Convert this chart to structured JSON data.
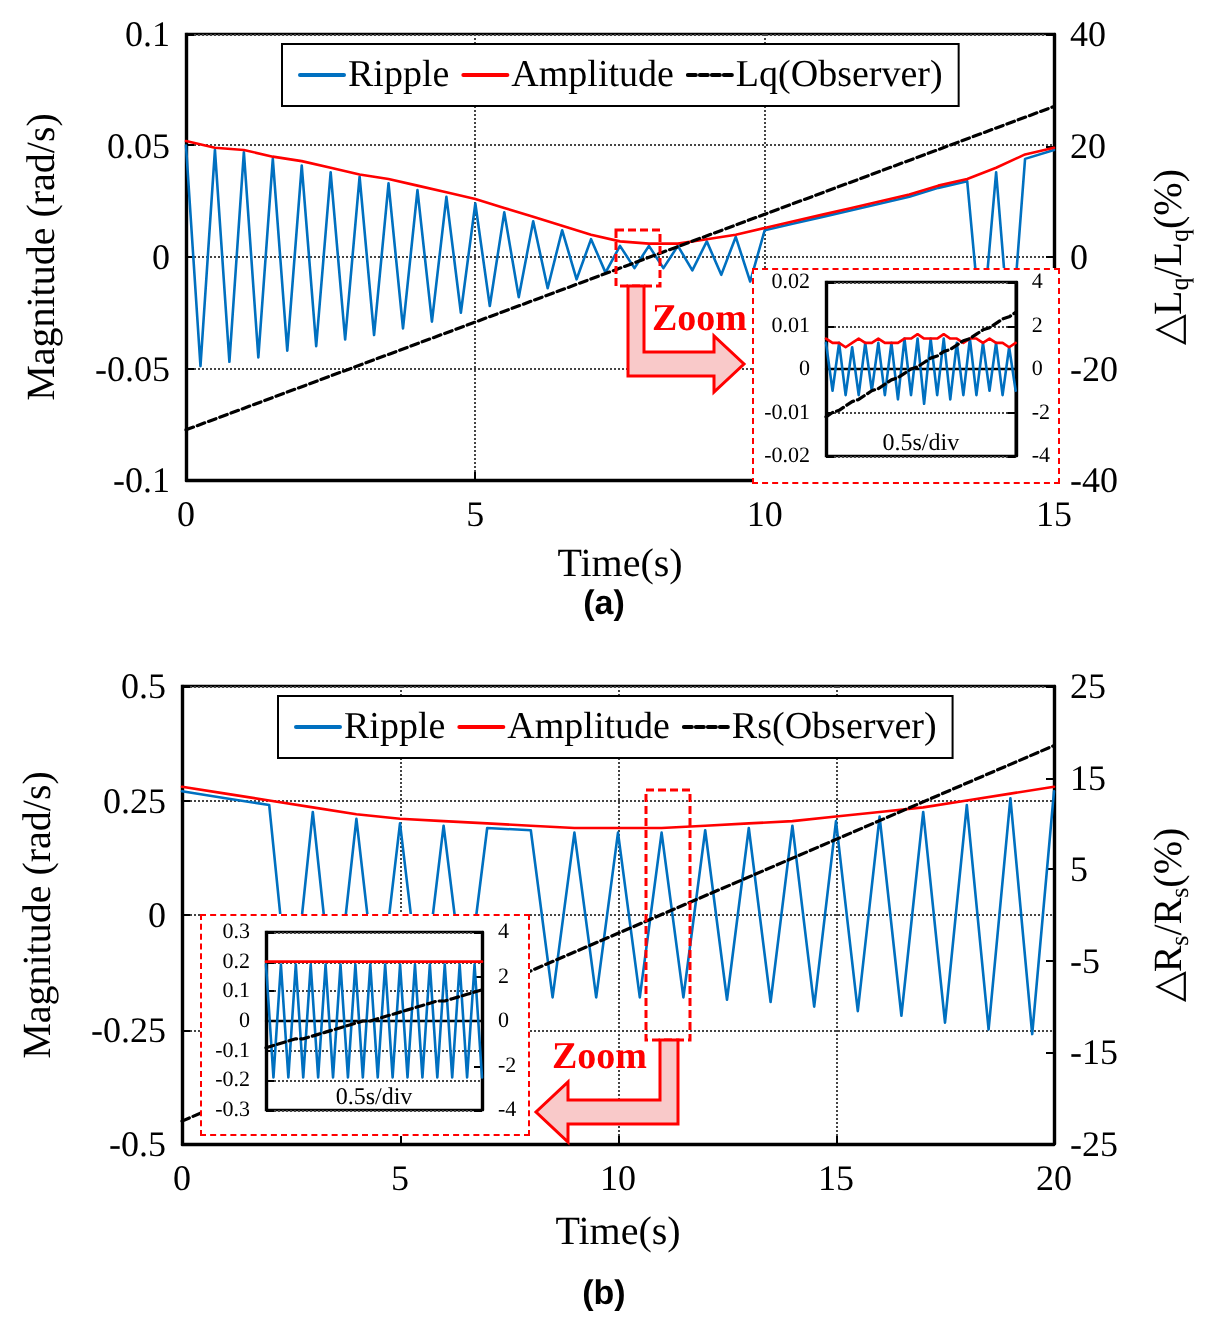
{
  "chart_data": [
    {
      "type": "line",
      "xlabel": "Time(s)",
      "ylabel": "Magnitude (rad/s)",
      "y2label": "△L$_{q}$/L$_{q}$(%)",
      "xlim": [
        0,
        15
      ],
      "xticks": [
        0,
        5,
        10,
        15
      ],
      "ylim": [
        -0.1,
        0.1
      ],
      "yticks": [
        -0.1,
        -0.05,
        0,
        0.05,
        0.1
      ],
      "y2lim": [
        -40,
        40
      ],
      "y2ticks": [
        -40,
        -20,
        0,
        20,
        40
      ],
      "grid": true,
      "legend": "top",
      "marker": "none",
      "annotations": [
        "Zoom",
        "(a)"
      ],
      "series": [
        {
          "name": "Ripple",
          "color": "#0070c0",
          "line_style": "solid",
          "x": [
            0,
            0.25,
            0.5,
            0.75,
            1,
            1.25,
            1.5,
            1.75,
            2,
            2.25,
            2.5,
            2.75,
            3,
            3.25,
            3.5,
            3.75,
            4,
            4.25,
            4.5,
            4.75,
            5,
            5.25,
            5.5,
            5.75,
            6,
            6.25,
            6.5,
            6.75,
            7,
            7.25,
            7.5,
            7.75,
            8,
            8.25,
            8.5,
            8.75,
            9,
            9.25,
            9.5,
            9.75,
            10,
            10.25,
            10.5,
            10.75,
            11,
            11.25,
            11.5,
            11.75,
            12,
            12.25,
            12.5,
            12.75,
            13,
            13.25,
            13.5,
            13.75,
            14,
            14.25,
            14.5,
            14.75,
            15
          ],
          "values": [
            0.05,
            -0.049,
            0.048,
            -0.047,
            0.047,
            -0.045,
            0.044,
            -0.042,
            0.041,
            -0.04,
            0.038,
            -0.037,
            0.036,
            -0.035,
            0.033,
            -0.032,
            0.03,
            -0.029,
            0.027,
            -0.025,
            0.024,
            -0.022,
            0.02,
            -0.018,
            0.016,
            -0.014,
            0.012,
            -0.01,
            0.008,
            -0.007,
            0.005,
            -0.005,
            0.005,
            -0.005,
            0.005,
            -0.006,
            0.007,
            -0.008,
            0.009,
            -0.011,
            0.012,
            null,
            0.015,
            null,
            0.018,
            null,
            0.021,
            null,
            0.024,
            null,
            0.027,
            null,
            0.031,
            null,
            0.034,
            -0.036,
            0.038,
            -0.041,
            0.044,
            null,
            0.048
          ]
        },
        {
          "name": "Amplitude",
          "color": "#ff0000",
          "line_style": "solid",
          "x": [
            0,
            0.5,
            1,
            1.5,
            2,
            2.5,
            3,
            3.5,
            4,
            4.5,
            5,
            5.5,
            6,
            6.5,
            7,
            7.5,
            8,
            8.5,
            9,
            9.5,
            10,
            10.5,
            11,
            11.5,
            12,
            12.5,
            13,
            13.5,
            14,
            14.5,
            15
          ],
          "values": [
            0.052,
            0.049,
            0.048,
            0.045,
            0.043,
            0.04,
            0.037,
            0.035,
            0.032,
            0.029,
            0.026,
            0.022,
            0.018,
            0.014,
            0.01,
            0.007,
            0.006,
            0.006,
            0.008,
            0.01,
            0.013,
            0.016,
            0.019,
            0.022,
            0.025,
            0.028,
            0.032,
            0.035,
            0.04,
            0.046,
            0.049
          ]
        },
        {
          "name": "Lq(Observer)",
          "color": "#000000",
          "line_style": "dashed",
          "axis": "y2",
          "x": [
            0,
            15
          ],
          "values": [
            -31,
            27
          ]
        }
      ]
    },
    {
      "type": "line",
      "xlabel": "0.5s/div",
      "categories": [
        null,
        null,
        null,
        null,
        null,
        null,
        null,
        null,
        null,
        null,
        null,
        null,
        null,
        null,
        null,
        null,
        null,
        null,
        null,
        null,
        null,
        null,
        null,
        null,
        null,
        null,
        null,
        null,
        null,
        null
      ],
      "ylim": [
        -0.02,
        0.02
      ],
      "yticks": [
        -0.02,
        -0.01,
        0,
        0.01,
        0.02
      ],
      "y2lim": [
        -4,
        4
      ],
      "y2ticks": [
        -4,
        -2,
        0,
        2,
        4
      ],
      "grid": "y",
      "tick_labels": "y",
      "marker": "none",
      "series": [
        {
          "color": "#0070c0",
          "line_style": "solid",
          "values": [
            0.006,
            -0.005,
            0.006,
            -0.006,
            0.005,
            -0.006,
            0.006,
            -0.005,
            0.006,
            -0.006,
            0.006,
            -0.007,
            0.007,
            -0.006,
            0.007,
            -0.008,
            0.007,
            -0.006,
            0.007,
            -0.007,
            0.006,
            -0.006,
            0.007,
            -0.006,
            0.006,
            -0.005,
            0.006,
            -0.006,
            0.005,
            -0.005
          ]
        },
        {
          "color": "#ff0000",
          "line_style": "solid",
          "values": [
            0.007,
            0.006,
            0.006,
            0.005,
            0.006,
            0.007,
            0.006,
            0.006,
            0.007,
            0.006,
            0.006,
            0.006,
            0.007,
            0.007,
            0.008,
            0.007,
            0.007,
            0.007,
            0.008,
            0.007,
            0.007,
            0.006,
            0.007,
            0.007,
            0.006,
            0.007,
            0.006,
            0.006,
            0.005,
            0.006
          ]
        },
        {
          "color": "#000000",
          "line_style": "dashed",
          "axis": "y2",
          "values": [
            -2.2,
            -2.0,
            -1.9,
            -1.7,
            -1.5,
            -1.4,
            -1.2,
            -1.0,
            -0.9,
            -0.7,
            -0.5,
            -0.4,
            -0.2,
            0,
            0.1,
            0.3,
            0.5,
            0.6,
            0.8,
            0.9,
            1.1,
            1.3,
            1.4,
            1.6,
            1.8,
            1.9,
            2.1,
            2.3,
            2.4,
            2.6
          ]
        }
      ]
    },
    {
      "type": "line",
      "xlabel": "Time(s)",
      "ylabel": "Magnitude (rad/s)",
      "y2label": "△R$_{s}$/R$_{s}$(%)",
      "xlim": [
        0,
        20
      ],
      "xticks": [
        0,
        5,
        10,
        15,
        20
      ],
      "ylim": [
        -0.5,
        0.5
      ],
      "yticks": [
        -0.5,
        -0.25,
        0,
        0.25,
        0.5
      ],
      "y2lim": [
        -25,
        25
      ],
      "y2ticks": [
        -25,
        -15,
        -5,
        5,
        15,
        25
      ],
      "grid": true,
      "legend": "top",
      "marker": "none",
      "annotations": [
        "Zoom",
        "(b)"
      ],
      "series": [
        {
          "name": "Ripple",
          "color": "#0070c0",
          "line_style": "solid",
          "x": [
            0,
            0.5,
            1,
            1.5,
            2,
            2.5,
            3,
            3.5,
            4,
            4.5,
            5,
            5.5,
            6,
            6.5,
            7,
            7.5,
            8,
            8.5,
            9,
            9.5,
            10,
            10.5,
            11,
            11.5,
            12,
            12.5,
            13,
            13.5,
            14,
            14.5,
            15,
            15.5,
            16,
            16.5,
            17,
            17.5,
            18,
            18.5,
            19,
            19.5,
            20
          ],
          "values": [
            0.27,
            null,
            0.255,
            null,
            0.24,
            -0.23,
            0.225,
            -0.22,
            0.21,
            -0.205,
            0.2,
            -0.2,
            0.195,
            -0.19,
            0.19,
            null,
            0.185,
            -0.18,
            0.18,
            -0.18,
            0.18,
            -0.18,
            0.18,
            -0.18,
            0.185,
            -0.185,
            0.19,
            -0.19,
            0.195,
            -0.2,
            0.205,
            -0.21,
            0.215,
            -0.22,
            0.225,
            -0.235,
            0.24,
            -0.25,
            0.255,
            -0.26,
            0.27
          ]
        },
        {
          "name": "Amplitude",
          "color": "#ff0000",
          "line_style": "solid",
          "x": [
            0,
            1,
            2,
            3,
            4,
            5,
            6,
            7,
            8,
            9,
            10,
            11,
            12,
            13,
            14,
            15,
            16,
            17,
            18,
            19,
            20
          ],
          "values": [
            0.28,
            0.265,
            0.25,
            0.235,
            0.22,
            0.21,
            0.205,
            0.2,
            0.195,
            0.19,
            0.19,
            0.19,
            0.195,
            0.2,
            0.205,
            0.215,
            0.225,
            0.235,
            0.25,
            0.265,
            0.28
          ]
        },
        {
          "name": "Rs(Observer)",
          "color": "#000000",
          "line_style": "dashed",
          "axis": "y2",
          "x": [
            0,
            20
          ],
          "values": [
            -22.5,
            18.5
          ]
        }
      ]
    },
    {
      "type": "line",
      "xlabel": "0.5s/div",
      "categories": [
        null,
        null,
        null,
        null,
        null,
        null,
        null,
        null,
        null,
        null,
        null,
        null,
        null,
        null,
        null,
        null,
        null,
        null,
        null,
        null,
        null,
        null,
        null,
        null,
        null,
        null,
        null,
        null,
        null,
        null
      ],
      "ylim": [
        -0.3,
        0.3
      ],
      "yticks": [
        -0.3,
        -0.2,
        -0.1,
        0,
        0.1,
        0.2,
        0.3
      ],
      "y2lim": [
        -4,
        4
      ],
      "y2ticks": [
        -4,
        -2,
        0,
        2,
        4
      ],
      "grid": "y",
      "tick_labels": "y",
      "marker": "none",
      "series": [
        {
          "color": "#0070c0",
          "line_style": "solid",
          "values": [
            0.19,
            -0.19,
            0.19,
            -0.19,
            0.19,
            -0.19,
            0.19,
            -0.19,
            0.19,
            -0.19,
            0.19,
            -0.19,
            0.19,
            -0.19,
            0.19,
            -0.19,
            0.19,
            -0.19,
            0.19,
            -0.19,
            0.19,
            -0.19,
            0.19,
            -0.19,
            0.19,
            -0.19,
            0.19,
            -0.19,
            0.19,
            -0.19
          ]
        },
        {
          "color": "#ff0000",
          "line_style": "solid",
          "values": [
            0.2,
            0.2,
            0.2,
            0.2,
            0.2,
            0.2,
            0.2,
            0.2,
            0.2,
            0.2,
            0.2,
            0.2,
            0.2,
            0.2,
            0.2,
            0.2,
            0.2,
            0.2,
            0.2,
            0.2,
            0.2,
            0.2,
            0.2,
            0.2,
            0.2,
            0.2,
            0.2,
            0.2,
            0.2,
            0.2
          ]
        },
        {
          "color": "#000000",
          "line_style": "dashed",
          "axis": "y2",
          "values": [
            -1.2,
            -1.1,
            -1.0,
            -0.9,
            -0.8,
            -0.8,
            -0.7,
            -0.6,
            -0.5,
            -0.4,
            -0.3,
            -0.2,
            -0.1,
            0,
            0,
            0.1,
            0.2,
            0.3,
            0.4,
            0.5,
            0.6,
            0.7,
            0.8,
            0.9,
            0.9,
            1.0,
            1.1,
            1.2,
            1.3,
            1.4
          ]
        }
      ]
    }
  ]
}
